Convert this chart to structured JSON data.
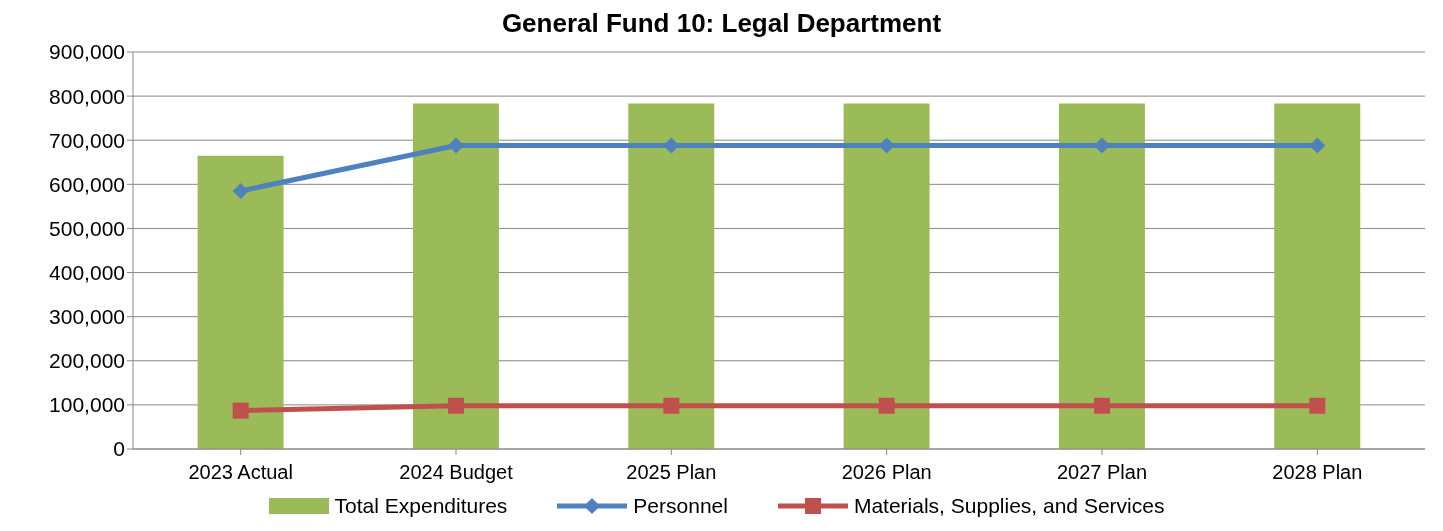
{
  "chart_data": {
    "type": "bar",
    "title": "General Fund 10: Legal Department",
    "categories": [
      "2023 Actual",
      "2024 Budget",
      "2025 Plan",
      "2026 Plan",
      "2027 Plan",
      "2028 Plan"
    ],
    "series": [
      {
        "name": "Total Expenditures",
        "color": "#9bbb59",
        "values": [
          665000,
          783000,
          783000,
          783000,
          783000,
          783000
        ]
      },
      {
        "name": "Personnel",
        "type": "line",
        "marker": "diamond",
        "color": "#4f81bd",
        "values": [
          585000,
          688000,
          688000,
          688000,
          688000,
          688000
        ]
      },
      {
        "name": "Materials, Supplies, and Services",
        "type": "line",
        "marker": "square",
        "color": "#c0504d",
        "values": [
          87000,
          98000,
          98000,
          98000,
          98000,
          98000
        ]
      }
    ],
    "ylim": [
      0,
      900000
    ],
    "yticks": [
      0,
      {
        "value": 100000,
        "label": "100,000"
      },
      {
        "value": 200000,
        "label": "200,000"
      },
      {
        "value": 300000,
        "label": "300,000"
      },
      {
        "value": 400000,
        "label": "400,000"
      },
      {
        "value": 500000,
        "label": "500,000"
      },
      {
        "value": 600000,
        "label": "600,000"
      },
      {
        "value": 700000,
        "label": "700,000"
      },
      {
        "value": 800000,
        "label": "800,000"
      },
      {
        "value": 900000,
        "label": "900,000"
      }
    ],
    "grid": "y",
    "legend": "bottom"
  }
}
